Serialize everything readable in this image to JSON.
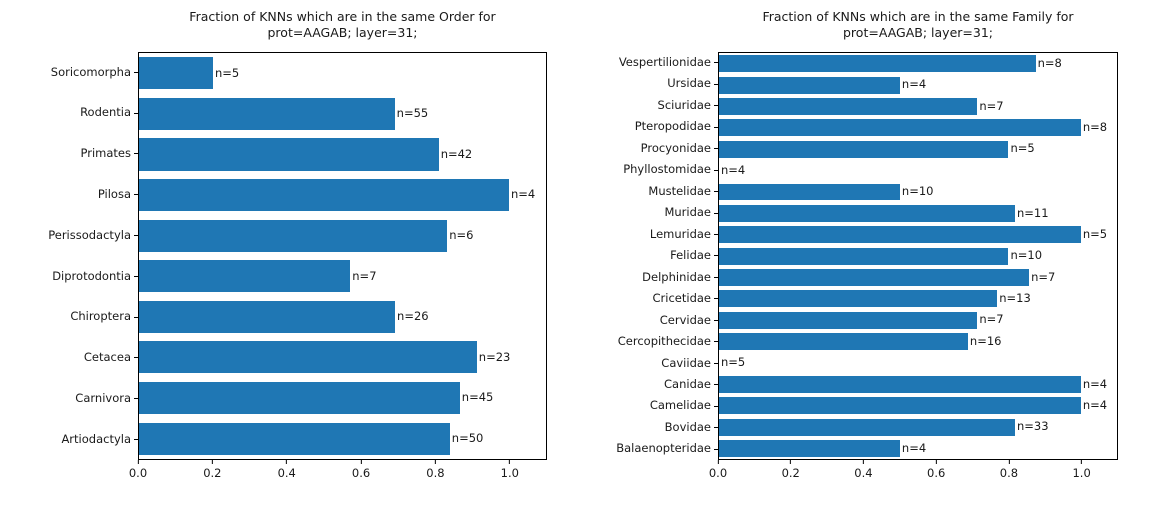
{
  "figure": {
    "background": "#ffffff"
  },
  "chart_data": [
    {
      "type": "bar",
      "orientation": "horizontal",
      "title_line1": "Fraction of KNNs which are in the same Order for",
      "title_line2": "prot=AAGAB; layer=31;",
      "categories": [
        "Soricomorpha",
        "Rodentia",
        "Primates",
        "Pilosa",
        "Perissodactyla",
        "Diprotodontia",
        "Chiroptera",
        "Cetacea",
        "Carnivora",
        "Artiodactyla"
      ],
      "values": [
        0.2,
        0.691,
        0.81,
        1.0,
        0.833,
        0.571,
        0.692,
        0.913,
        0.867,
        0.84
      ],
      "n_values": [
        5,
        55,
        42,
        4,
        6,
        7,
        26,
        23,
        45,
        50
      ],
      "bar_labels": [
        "n=5",
        "n=55",
        "n=42",
        "n=4",
        "n=6",
        "n=7",
        "n=26",
        "n=23",
        "n=45",
        "n=50"
      ],
      "xlim": [
        0,
        1.1
      ],
      "xtick_values": [
        0.0,
        0.2,
        0.4,
        0.6,
        0.8,
        1.0
      ],
      "xtick_labels": [
        "0.0",
        "0.2",
        "0.4",
        "0.6",
        "0.8",
        "1.0"
      ],
      "bar_color": "#1f77b4",
      "grid": false,
      "legend": null
    },
    {
      "type": "bar",
      "orientation": "horizontal",
      "title_line1": "Fraction of KNNs which are in the same Family for",
      "title_line2": "prot=AAGAB; layer=31;",
      "categories": [
        "Vespertilionidae",
        "Ursidae",
        "Sciuridae",
        "Pteropodidae",
        "Procyonidae",
        "Phyllostomidae",
        "Mustelidae",
        "Muridae",
        "Lemuridae",
        "Felidae",
        "Delphinidae",
        "Cricetidae",
        "Cervidae",
        "Cercopithecidae",
        "Caviidae",
        "Canidae",
        "Camelidae",
        "Bovidae",
        "Balaenopteridae"
      ],
      "values": [
        0.875,
        0.5,
        0.714,
        1.0,
        0.8,
        0.0,
        0.5,
        0.818,
        1.0,
        0.8,
        0.857,
        0.769,
        0.714,
        0.688,
        0.0,
        1.0,
        1.0,
        0.818,
        0.5
      ],
      "n_values": [
        8,
        4,
        7,
        8,
        5,
        4,
        10,
        11,
        5,
        10,
        7,
        13,
        7,
        16,
        5,
        4,
        4,
        33,
        4
      ],
      "bar_labels": [
        "n=8",
        "n=4",
        "n=7",
        "n=8",
        "n=5",
        "n=4",
        "n=10",
        "n=11",
        "n=5",
        "n=10",
        "n=7",
        "n=13",
        "n=7",
        "n=16",
        "n=5",
        "n=4",
        "n=4",
        "n=33",
        "n=4"
      ],
      "xlim": [
        0,
        1.1
      ],
      "xtick_values": [
        0.0,
        0.2,
        0.4,
        0.6,
        0.8,
        1.0
      ],
      "xtick_labels": [
        "0.0",
        "0.2",
        "0.4",
        "0.6",
        "0.8",
        "1.0"
      ],
      "bar_color": "#1f77b4",
      "grid": false,
      "legend": null
    }
  ]
}
